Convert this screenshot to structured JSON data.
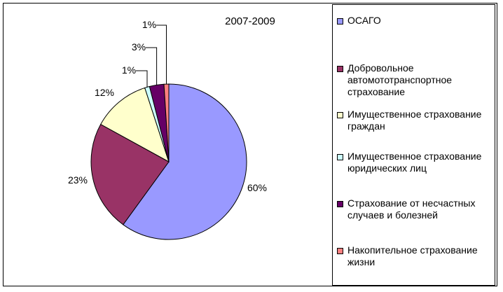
{
  "chart_data": {
    "type": "pie",
    "title": "2007-2009",
    "legend_position": "right",
    "slices": [
      {
        "label": "ОСАГО",
        "value": 60,
        "display": "60%",
        "color": "#9999ff"
      },
      {
        "label": "Добровольное автомототранспортное страхование",
        "value": 23,
        "display": "23%",
        "color": "#993366"
      },
      {
        "label": "Имущественное страхование граждан",
        "value": 12,
        "display": "12%",
        "color": "#ffffcc"
      },
      {
        "label": "Имущественное страхование юридических лиц",
        "value": 1,
        "display": "1%",
        "color": "#ccffff"
      },
      {
        "label": "Страхование от несчастных случаев и болезней",
        "value": 3,
        "display": "3%",
        "color": "#660066"
      },
      {
        "label": "Накопительное страхование жизни",
        "value": 1,
        "display": "1%",
        "color": "#ff8080"
      }
    ]
  }
}
